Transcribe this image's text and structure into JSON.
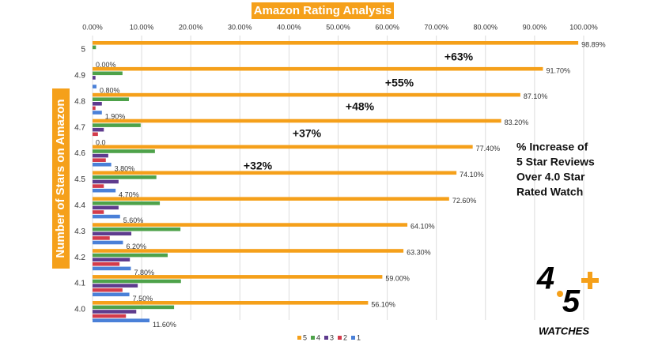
{
  "chart_data": {
    "type": "hbar",
    "title": "Amazon Rating Analysis",
    "y_label": "Number  of Stars on Amazon",
    "categories": [
      "5",
      "4.9",
      "4.8",
      "4.7",
      "4.6",
      "4.5",
      "4.4",
      "4.3",
      "4.2",
      "4.1",
      "4.0"
    ],
    "series": [
      {
        "name": "5",
        "color": "#f5a01a",
        "values": [
          98.89,
          91.7,
          87.1,
          83.2,
          77.4,
          74.1,
          72.6,
          64.1,
          63.3,
          59.0,
          56.1
        ],
        "value_labels": [
          "98.89%",
          "91.70%",
          "87.10%",
          "83.20%",
          "77.40%",
          "74.10%",
          "72.60%",
          "64.10%",
          "63.30%",
          "59.00%",
          "56.10%"
        ]
      },
      {
        "name": "4",
        "color": "#4ea24a",
        "values": [
          0.7,
          6.1,
          7.4,
          9.8,
          12.7,
          13.0,
          13.7,
          17.9,
          15.3,
          18.0,
          16.6
        ]
      },
      {
        "name": "3",
        "color": "#5e3b8e",
        "values": [
          0,
          0.6,
          1.9,
          2.3,
          3.2,
          5.3,
          5.3,
          7.9,
          7.6,
          9.2,
          8.9
        ]
      },
      {
        "name": "2",
        "color": "#d33b4b",
        "values": [
          0,
          0,
          0.6,
          1.1,
          2.7,
          2.3,
          2.3,
          3.5,
          5.5,
          6.1,
          6.8
        ]
      },
      {
        "name": "1",
        "color": "#4a80d8",
        "values": [
          0,
          0.8,
          1.9,
          0,
          3.8,
          4.7,
          5.6,
          6.2,
          7.8,
          7.5,
          11.6
        ],
        "value_labels": [
          "0.00%",
          "0.80%",
          "1.90%",
          "0.0",
          "3.80%",
          "4.70%",
          "5.60%",
          "6.20%",
          "7.80%",
          "7.50%",
          "11.60%"
        ]
      }
    ],
    "xlim": [
      0,
      100
    ],
    "xticks": [
      {
        "value": 0,
        "label": "0.00%"
      },
      {
        "value": 10,
        "label": "10.00%"
      },
      {
        "value": 20,
        "label": "20.00%"
      },
      {
        "value": 30,
        "label": "30.00%"
      },
      {
        "value": 40,
        "label": "40.00%"
      },
      {
        "value": 50,
        "label": "50.00%"
      },
      {
        "value": 60,
        "label": "60.00%"
      },
      {
        "value": 70,
        "label": "70.00%"
      },
      {
        "value": 80,
        "label": "80.00%"
      },
      {
        "value": 90,
        "label": "90.00%"
      },
      {
        "value": 100,
        "label": "100.00%"
      }
    ],
    "grid": true,
    "legend": "bottom",
    "annotations": [
      "+63%",
      "+55%",
      "+48%",
      "+37%",
      "+32%"
    ],
    "note": [
      "% Increase of",
      "5 Star Reviews",
      "Over 4.0 Star",
      "Rated Watch"
    ],
    "logo": [
      "4",
      "5",
      "WATCHES"
    ]
  }
}
